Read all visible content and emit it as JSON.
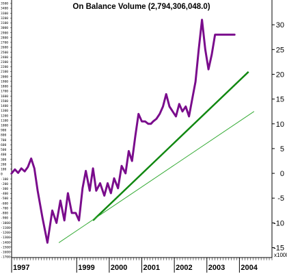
{
  "chart_data": {
    "type": "line",
    "title": "On Balance Volume (2,794,306,048.0)",
    "right_axis": {
      "unit_label": "x1000",
      "ticks": [
        30,
        25,
        20,
        15,
        10,
        5,
        0,
        -5,
        -10,
        -15
      ],
      "range": [
        -17,
        35
      ]
    },
    "left_axis": {
      "ticks": [
        3500,
        3400,
        3300,
        3200,
        3100,
        3000,
        2900,
        2800,
        2700,
        2600,
        2500,
        2400,
        2300,
        2200,
        2100,
        2000,
        1900,
        1800,
        1700,
        1600,
        1500,
        1400,
        1300,
        1200,
        1100,
        1000,
        900,
        800,
        700,
        600,
        500,
        400,
        300,
        200,
        100,
        0,
        -100,
        -200,
        -300,
        -400,
        -500,
        -600,
        -700,
        -800,
        -900,
        -1000,
        -1100,
        -1200,
        -1300,
        -1400,
        -1500,
        -1600,
        -1700
      ]
    },
    "x_axis": {
      "range": [
        1997,
        2005
      ],
      "tick_labels": [
        "1997",
        "1999",
        "2000",
        "2001",
        "2002",
        "2003",
        "2004"
      ],
      "tick_values": [
        1997,
        1999,
        2000,
        2001,
        2002,
        2003,
        2004
      ]
    },
    "grid": false,
    "series": [
      {
        "kind": "obv",
        "color": "#7a0c8c",
        "x": [
          1997.0,
          1997.1,
          1997.2,
          1997.3,
          1997.4,
          1997.5,
          1997.6,
          1997.7,
          1997.8,
          1997.95,
          1998.1,
          1998.25,
          1998.38,
          1998.5,
          1998.62,
          1998.73,
          1998.85,
          1998.97,
          1999.07,
          1999.18,
          1999.28,
          1999.4,
          1999.5,
          1999.6,
          1999.72,
          1999.85,
          1999.95,
          2000.05,
          2000.15,
          2000.27,
          2000.38,
          2000.5,
          2000.6,
          2000.7,
          2000.8,
          2000.9,
          2001.0,
          2001.1,
          2001.2,
          2001.28,
          2001.35,
          2001.45,
          2001.55,
          2001.65,
          2001.75,
          2001.85,
          2001.95,
          2002.05,
          2002.15,
          2002.25,
          2002.35,
          2002.45,
          2002.55,
          2002.65,
          2002.75,
          2002.85,
          2002.95,
          2003.05,
          2003.15,
          2003.25,
          2003.35,
          2003.45,
          2003.55,
          2003.65,
          2003.75,
          2003.85
        ],
        "y": [
          0,
          0.8,
          0.1,
          1.0,
          0.4,
          1.3,
          3.0,
          1.0,
          -3.5,
          -9.0,
          -14.0,
          -7.5,
          -10.0,
          -5.5,
          -9.5,
          -4.0,
          -8.0,
          -8.0,
          -9.5,
          -3.0,
          0.5,
          -3.5,
          1.0,
          -3.5,
          -2.0,
          -4.5,
          -2.0,
          -4.0,
          -1.0,
          -3.0,
          1.5,
          0.0,
          4.5,
          2.5,
          7.5,
          12.0,
          10.5,
          10.5,
          10.0,
          10.0,
          10.5,
          11.0,
          12.0,
          13.5,
          16.0,
          13.5,
          12.5,
          11.5,
          14.0,
          12.5,
          13.5,
          11.5,
          15.0,
          18.5,
          25.0,
          31.0,
          25.0,
          21.0,
          24.0,
          28.0,
          28.0,
          28.0,
          28.0,
          28.0,
          28.0,
          28.0
        ]
      },
      {
        "kind": "trendline",
        "color": "#118811",
        "width": 2.5,
        "x": [
          1999.5,
          2004.28
        ],
        "y": [
          -9.5,
          20.5
        ]
      },
      {
        "kind": "trendline",
        "color": "#33aa33",
        "width": 1,
        "x": [
          1998.45,
          2004.45
        ],
        "y": [
          -14.0,
          12.5
        ]
      }
    ]
  }
}
